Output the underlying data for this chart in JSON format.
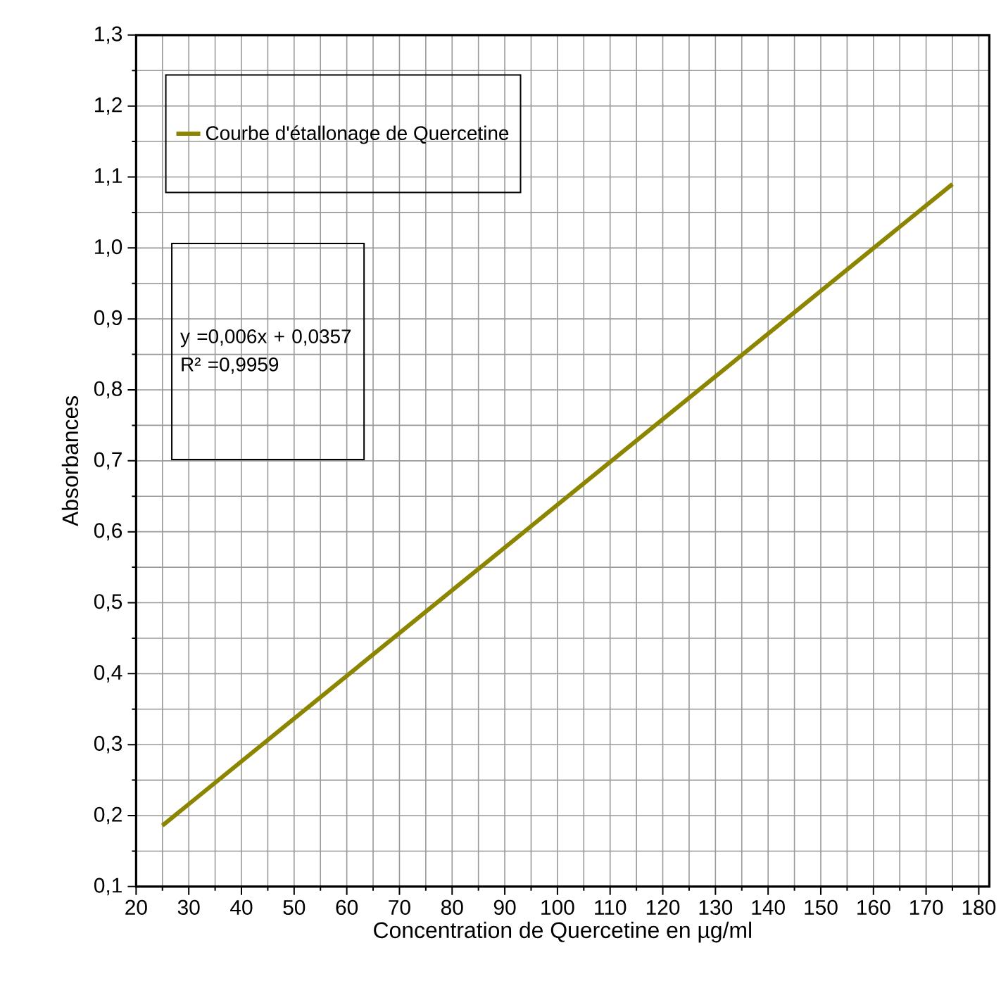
{
  "chart_data": {
    "type": "line",
    "xlabel": "Concentration de  Quercetine en µg/ml",
    "ylabel": "Absorbances",
    "x": [
      25,
      175
    ],
    "series": [
      {
        "name": "Courbe d'étallonage de Quercetine",
        "color": "#8b8500",
        "values": [
          0.186,
          1.09
        ]
      }
    ],
    "xlim": [
      20,
      182
    ],
    "ylim": [
      0.1,
      1.3
    ],
    "xticks": [
      20,
      30,
      40,
      50,
      60,
      70,
      80,
      90,
      100,
      110,
      120,
      130,
      140,
      150,
      160,
      170,
      180
    ],
    "yticks": [
      {
        "value": 0.1,
        "label": "0,1"
      },
      {
        "value": 0.2,
        "label": "0,2"
      },
      {
        "value": 0.3,
        "label": "0,3"
      },
      {
        "value": 0.4,
        "label": "0,4"
      },
      {
        "value": 0.5,
        "label": "0,5"
      },
      {
        "value": 0.6,
        "label": "0,6"
      },
      {
        "value": 0.7,
        "label": "0,7"
      },
      {
        "value": 0.8,
        "label": "0,8"
      },
      {
        "value": 0.9,
        "label": "0,9"
      },
      {
        "value": 1.0,
        "label": "1,0"
      },
      {
        "value": 1.1,
        "label": "1,1"
      },
      {
        "value": 1.2,
        "label": "1,2"
      },
      {
        "value": 1.3,
        "label": "1,3"
      }
    ],
    "annotations": [
      "y =0,006x + 0,0357",
      "R² =0,9959"
    ],
    "grid": true,
    "legend": "top left",
    "line_style": "solid"
  }
}
